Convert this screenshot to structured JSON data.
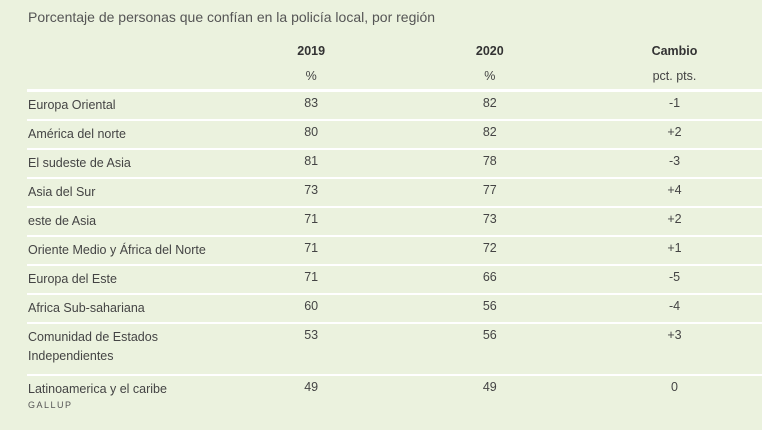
{
  "title": "Porcentaje de personas que confían en la policía local, por región",
  "headers": [
    {
      "label": "",
      "unit": ""
    },
    {
      "label": "2019",
      "unit": "%"
    },
    {
      "label": "2020",
      "unit": "%"
    },
    {
      "label": "Cambio",
      "unit": "pct. pts."
    }
  ],
  "rows": [
    [
      "Europa Oriental",
      "83",
      "82",
      "-1"
    ],
    [
      "América del norte",
      "80",
      "82",
      "+2"
    ],
    [
      "El sudeste de Asia",
      "81",
      "78",
      "-3"
    ],
    [
      "Asia del Sur",
      "73",
      "77",
      "+4"
    ],
    [
      "este de Asia",
      "71",
      "73",
      "+2"
    ],
    [
      "Oriente Medio y África del Norte",
      "71",
      "72",
      "+1"
    ],
    [
      "Europa del Este",
      "71",
      "66",
      "-5"
    ],
    [
      "Africa Sub-sahariana",
      "60",
      "56",
      "-4"
    ],
    [
      "Comunidad de Estados Independientes",
      "53",
      "56",
      "+3"
    ],
    [
      "Latinoamerica y el caribe",
      "49",
      "49",
      "0"
    ]
  ],
  "source": "GALLUP",
  "chart_data": {
    "type": "table",
    "title": "Porcentaje de personas que confían en la policía local, por región",
    "columns": [
      "",
      "2019 (%)",
      "2020 (%)",
      "Cambio (pct. pts.)"
    ],
    "categories": [
      "Europa Oriental",
      "América del norte",
      "El sudeste de Asia",
      "Asia del Sur",
      "este de Asia",
      "Oriente Medio y África del Norte",
      "Europa del Este",
      "Africa Sub-sahariana",
      "Comunidad de Estados Independientes",
      "Latinoamerica y el caribe"
    ],
    "series": [
      {
        "name": "2019",
        "values": [
          83,
          80,
          81,
          73,
          71,
          71,
          71,
          60,
          53,
          49
        ]
      },
      {
        "name": "2020",
        "values": [
          82,
          82,
          78,
          77,
          73,
          72,
          66,
          56,
          56,
          49
        ]
      },
      {
        "name": "Cambio",
        "values": [
          -1,
          2,
          -3,
          4,
          2,
          1,
          -5,
          -4,
          3,
          0
        ]
      }
    ]
  }
}
